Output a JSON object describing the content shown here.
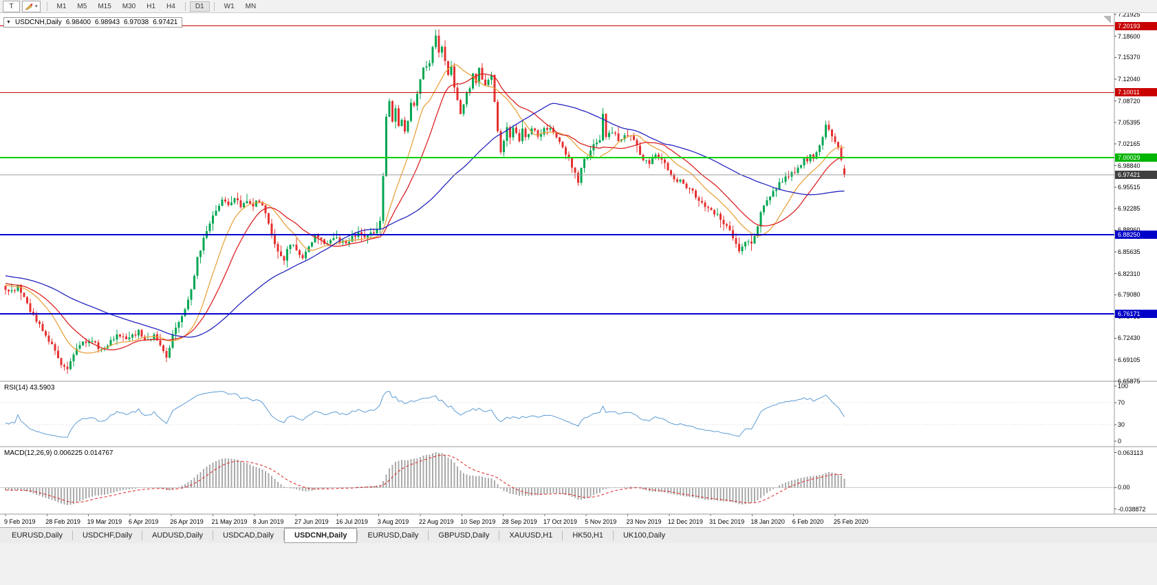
{
  "toolbar": {
    "text_tool_label": "T",
    "crayon_tool_icon": "crayon-icon",
    "dropdown_caret": "▾",
    "timeframes": [
      "M1",
      "M5",
      "M15",
      "M30",
      "H1",
      "H4",
      "D1",
      "W1",
      "MN"
    ],
    "active_timeframe": "D1",
    "separators_after": [
      "H4",
      "D1"
    ]
  },
  "chart_header": {
    "collapse_arrow": "▼",
    "symbol_timeframe": "USDCNH,Daily",
    "open": "6.98400",
    "high": "6.98943",
    "low": "6.97038",
    "close": "6.97421"
  },
  "indicators": {
    "rsi_label": "RSI(14) 43.5903",
    "macd_label": "MACD(12,26,9) 0.006225 0.014767"
  },
  "axes": {
    "price_ticks": [
      "7.21925",
      "7.18600",
      "7.15370",
      "7.12040",
      "7.08720",
      "7.05395",
      "7.02165",
      "6.98840",
      "6.95515",
      "6.92285",
      "6.88960",
      "6.85635",
      "6.82310",
      "6.79080",
      "6.75755",
      "6.72430",
      "6.69105",
      "6.65875"
    ],
    "rsi_ticks": [
      "100",
      "70",
      "30",
      "0"
    ],
    "macd_ticks": [
      "0.063113",
      "0.00",
      "-0.038872"
    ],
    "time_labels": [
      "9 Feb 2019",
      "28 Feb 2019",
      "19 Mar 2019",
      "6 Apr 2019",
      "26 Apr 2019",
      "21 May 2019",
      "8 Jun 2019",
      "27 Jun 2019",
      "16 Jul 2019",
      "3 Aug 2019",
      "22 Aug 2019",
      "10 Sep 2019",
      "28 Sep 2019",
      "17 Oct 2019",
      "5 Nov 2019",
      "23 Nov 2019",
      "12 Dec 2019",
      "31 Dec 2019",
      "18 Jan 2020",
      "6 Feb 2020",
      "25 Feb 2020"
    ]
  },
  "price_tags": [
    {
      "text": "7.20193",
      "value": 7.20193,
      "bg": "#c80000",
      "role": "resistance-price"
    },
    {
      "text": "7.10011",
      "value": 7.10011,
      "bg": "#c80000",
      "role": "resistance-price"
    },
    {
      "text": "7.00029",
      "value": 7.00029,
      "bg": "#00b400",
      "role": "pivot-price"
    },
    {
      "text": "6.97421",
      "value": 6.97421,
      "bg": "#3f3f3f",
      "role": "current-price"
    },
    {
      "text": "6.88250",
      "value": 6.8825,
      "bg": "#0000c8",
      "role": "support-price"
    },
    {
      "text": "6.76171",
      "value": 6.76171,
      "bg": "#0000c8",
      "role": "support-price"
    }
  ],
  "tabs": [
    {
      "label": "EURUSD,Daily",
      "active": false
    },
    {
      "label": "USDCHF,Daily",
      "active": false
    },
    {
      "label": "AUDUSD,Daily",
      "active": false
    },
    {
      "label": "USDCAD,Daily",
      "active": false
    },
    {
      "label": "USDCNH,Daily",
      "active": true
    },
    {
      "label": "EURUSD,Daily",
      "active": false
    },
    {
      "label": "GBPUSD,Daily",
      "active": false
    },
    {
      "label": "XAUUSD,H1",
      "active": false
    },
    {
      "label": "HK50,H1",
      "active": false
    },
    {
      "label": "UK100,Daily",
      "active": false
    }
  ],
  "chart_data": {
    "type": "candlestick",
    "symbol": "USDCNH",
    "timeframe": "Daily",
    "ohlc_current": {
      "open": 6.984,
      "high": 6.98943,
      "low": 6.97038,
      "close": 6.97421
    },
    "visible_price_range": [
      6.6585,
      7.2215
    ],
    "num_candles": 272,
    "warmup_candles": 60,
    "current_price": 6.97421,
    "colors": {
      "bull": "#00a651",
      "bear": "#e53030",
      "ma_fast": "#e8a33d",
      "ma_mid": "#dd2020",
      "ma_slow": "#2424c0",
      "current_price_line": "#999999",
      "rsi_line": "#5b9bd5",
      "macd_histogram": "#a9a9a9",
      "macd_signal": "#dd2020",
      "guide_dotted": "#c8c8c8"
    },
    "horizontal_lines": [
      {
        "price": 7.20193,
        "color": "#cc0000",
        "width": 1
      },
      {
        "price": 7.10011,
        "color": "#cc0000",
        "width": 1
      },
      {
        "price": 7.00029,
        "color": "#00d200",
        "width": 2
      },
      {
        "price": 6.8825,
        "color": "#0000cd",
        "width": 2
      },
      {
        "price": 6.76171,
        "color": "#0000cd",
        "width": 2
      }
    ],
    "moving_averages": [
      {
        "period": 13,
        "color_key": "ma_fast"
      },
      {
        "period": 21,
        "color_key": "ma_mid"
      },
      {
        "period": 55,
        "color_key": "ma_slow"
      }
    ],
    "rsi": {
      "period": 14,
      "current": 43.5903,
      "guide_levels": [
        70,
        30
      ],
      "scale": [
        0,
        100
      ]
    },
    "macd": {
      "fast": 12,
      "slow": 26,
      "signal": 9,
      "current_macd": 0.006225,
      "current_signal": 0.014767,
      "axis_range": [
        -0.0455,
        0.069
      ]
    },
    "close_anchors": [
      [
        0,
        6.8
      ],
      [
        2,
        6.795
      ],
      [
        4,
        6.805
      ],
      [
        6,
        6.785
      ],
      [
        9,
        6.758
      ],
      [
        12,
        6.735
      ],
      [
        15,
        6.715
      ],
      [
        18,
        6.685
      ],
      [
        20,
        6.675
      ],
      [
        22,
        6.7
      ],
      [
        25,
        6.718
      ],
      [
        28,
        6.722
      ],
      [
        31,
        6.705
      ],
      [
        34,
        6.72
      ],
      [
        37,
        6.73
      ],
      [
        40,
        6.724
      ],
      [
        43,
        6.735
      ],
      [
        46,
        6.72
      ],
      [
        48,
        6.73
      ],
      [
        50,
        6.714
      ],
      [
        52,
        6.694
      ],
      [
        54,
        6.728
      ],
      [
        56,
        6.748
      ],
      [
        58,
        6.77
      ],
      [
        60,
        6.8
      ],
      [
        62,
        6.845
      ],
      [
        64,
        6.878
      ],
      [
        66,
        6.9
      ],
      [
        68,
        6.918
      ],
      [
        70,
        6.934
      ],
      [
        72,
        6.928
      ],
      [
        74,
        6.94
      ],
      [
        76,
        6.924
      ],
      [
        78,
        6.935
      ],
      [
        80,
        6.929
      ],
      [
        82,
        6.936
      ],
      [
        84,
        6.915
      ],
      [
        86,
        6.88
      ],
      [
        88,
        6.856
      ],
      [
        90,
        6.845
      ],
      [
        92,
        6.87
      ],
      [
        94,
        6.858
      ],
      [
        96,
        6.845
      ],
      [
        98,
        6.864
      ],
      [
        100,
        6.88
      ],
      [
        102,
        6.874
      ],
      [
        104,
        6.869
      ],
      [
        106,
        6.879
      ],
      [
        108,
        6.874
      ],
      [
        110,
        6.869
      ],
      [
        112,
        6.879
      ],
      [
        114,
        6.884
      ],
      [
        116,
        6.878
      ],
      [
        118,
        6.884
      ],
      [
        120,
        6.889
      ],
      [
        121,
        6.905
      ],
      [
        122,
        6.975
      ],
      [
        123,
        7.06
      ],
      [
        124,
        7.088
      ],
      [
        125,
        7.058
      ],
      [
        126,
        7.078
      ],
      [
        127,
        7.048
      ],
      [
        128,
        7.06
      ],
      [
        129,
        7.04
      ],
      [
        130,
        7.058
      ],
      [
        131,
        7.088
      ],
      [
        132,
        7.078
      ],
      [
        133,
        7.098
      ],
      [
        135,
        7.138
      ],
      [
        137,
        7.148
      ],
      [
        139,
        7.186
      ],
      [
        140,
        7.16
      ],
      [
        141,
        7.172
      ],
      [
        142,
        7.15
      ],
      [
        143,
        7.128
      ],
      [
        144,
        7.14
      ],
      [
        145,
        7.108
      ],
      [
        146,
        7.088
      ],
      [
        147,
        7.064
      ],
      [
        148,
        7.08
      ],
      [
        149,
        7.098
      ],
      [
        150,
        7.108
      ],
      [
        151,
        7.128
      ],
      [
        152,
        7.118
      ],
      [
        153,
        7.14
      ],
      [
        154,
        7.12
      ],
      [
        155,
        7.108
      ],
      [
        156,
        7.118
      ],
      [
        157,
        7.13
      ],
      [
        158,
        7.088
      ],
      [
        159,
        7.04
      ],
      [
        160,
        7.008
      ],
      [
        161,
        7.028
      ],
      [
        162,
        7.044
      ],
      [
        163,
        7.03
      ],
      [
        164,
        7.048
      ],
      [
        165,
        7.038
      ],
      [
        166,
        7.028
      ],
      [
        167,
        7.044
      ],
      [
        168,
        7.03
      ],
      [
        170,
        7.044
      ],
      [
        172,
        7.034
      ],
      [
        174,
        7.044
      ],
      [
        176,
        7.048
      ],
      [
        178,
        7.034
      ],
      [
        180,
        7.018
      ],
      [
        182,
        6.998
      ],
      [
        184,
        6.974
      ],
      [
        185,
        6.96
      ],
      [
        186,
        6.984
      ],
      [
        187,
        6.998
      ],
      [
        188,
        7.004
      ],
      [
        189,
        7.01
      ],
      [
        190,
        7.018
      ],
      [
        191,
        7.024
      ],
      [
        192,
        7.03
      ],
      [
        193,
        7.064
      ],
      [
        194,
        7.034
      ],
      [
        196,
        7.04
      ],
      [
        198,
        7.028
      ],
      [
        200,
        7.034
      ],
      [
        202,
        7.034
      ],
      [
        204,
        7.018
      ],
      [
        206,
        6.998
      ],
      [
        208,
        6.994
      ],
      [
        210,
        7.004
      ],
      [
        212,
        6.998
      ],
      [
        214,
        6.98
      ],
      [
        216,
        6.97
      ],
      [
        218,
        6.964
      ],
      [
        220,
        6.954
      ],
      [
        222,
        6.948
      ],
      [
        224,
        6.934
      ],
      [
        226,
        6.924
      ],
      [
        228,
        6.918
      ],
      [
        230,
        6.914
      ],
      [
        232,
        6.9
      ],
      [
        234,
        6.888
      ],
      [
        235,
        6.88
      ],
      [
        236,
        6.868
      ],
      [
        237,
        6.858
      ],
      [
        238,
        6.864
      ],
      [
        239,
        6.87
      ],
      [
        240,
        6.874
      ],
      [
        241,
        6.866
      ],
      [
        242,
        6.88
      ],
      [
        243,
        6.898
      ],
      [
        244,
        6.918
      ],
      [
        245,
        6.928
      ],
      [
        246,
        6.938
      ],
      [
        247,
        6.944
      ],
      [
        248,
        6.95
      ],
      [
        249,
        6.954
      ],
      [
        250,
        6.96
      ],
      [
        251,
        6.964
      ],
      [
        252,
        6.97
      ],
      [
        253,
        6.974
      ],
      [
        254,
        6.98
      ],
      [
        255,
        6.976
      ],
      [
        256,
        6.984
      ],
      [
        257,
        6.99
      ],
      [
        258,
        7.0
      ],
      [
        259,
        6.994
      ],
      [
        260,
        7.004
      ],
      [
        261,
        7.0
      ],
      [
        262,
        7.01
      ],
      [
        263,
        7.02
      ],
      [
        264,
        7.034
      ],
      [
        265,
        7.05
      ],
      [
        266,
        7.04
      ],
      [
        267,
        7.03
      ],
      [
        268,
        7.024
      ],
      [
        269,
        7.014
      ],
      [
        270,
        6.994
      ],
      [
        271,
        6.9742
      ]
    ]
  }
}
